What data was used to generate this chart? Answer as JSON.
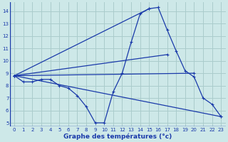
{
  "xlabel": "Graphe des températures (°c)",
  "xlim": [
    -0.5,
    23.5
  ],
  "ylim": [
    4.7,
    14.7
  ],
  "xticks": [
    0,
    1,
    2,
    3,
    4,
    5,
    6,
    7,
    8,
    9,
    10,
    11,
    12,
    13,
    14,
    15,
    16,
    17,
    18,
    19,
    20,
    21,
    22,
    23
  ],
  "yticks": [
    5,
    6,
    7,
    8,
    9,
    10,
    11,
    12,
    13,
    14
  ],
  "bg_color": "#cde8e8",
  "grid_color": "#aacccc",
  "line_color": "#1a3aaa",
  "main_curve": {
    "x": [
      0,
      1,
      2,
      3,
      4,
      5,
      6,
      7,
      8,
      9,
      10,
      11,
      12,
      13,
      14,
      15,
      16,
      17,
      18,
      19,
      20,
      21,
      22,
      23
    ],
    "y": [
      8.8,
      8.3,
      8.3,
      8.5,
      8.5,
      8.0,
      7.8,
      7.2,
      6.3,
      5.0,
      5.0,
      7.5,
      9.0,
      11.5,
      13.8,
      14.2,
      14.3,
      12.5,
      10.8,
      9.2,
      8.7,
      7.0,
      6.5,
      5.5
    ]
  },
  "straight_lines": [
    {
      "x": [
        0,
        23
      ],
      "y": [
        8.8,
        5.5
      ]
    },
    {
      "x": [
        0,
        20
      ],
      "y": [
        8.8,
        9.0
      ]
    },
    {
      "x": [
        0,
        17
      ],
      "y": [
        8.8,
        10.5
      ]
    },
    {
      "x": [
        0,
        15
      ],
      "y": [
        8.8,
        14.2
      ]
    }
  ]
}
